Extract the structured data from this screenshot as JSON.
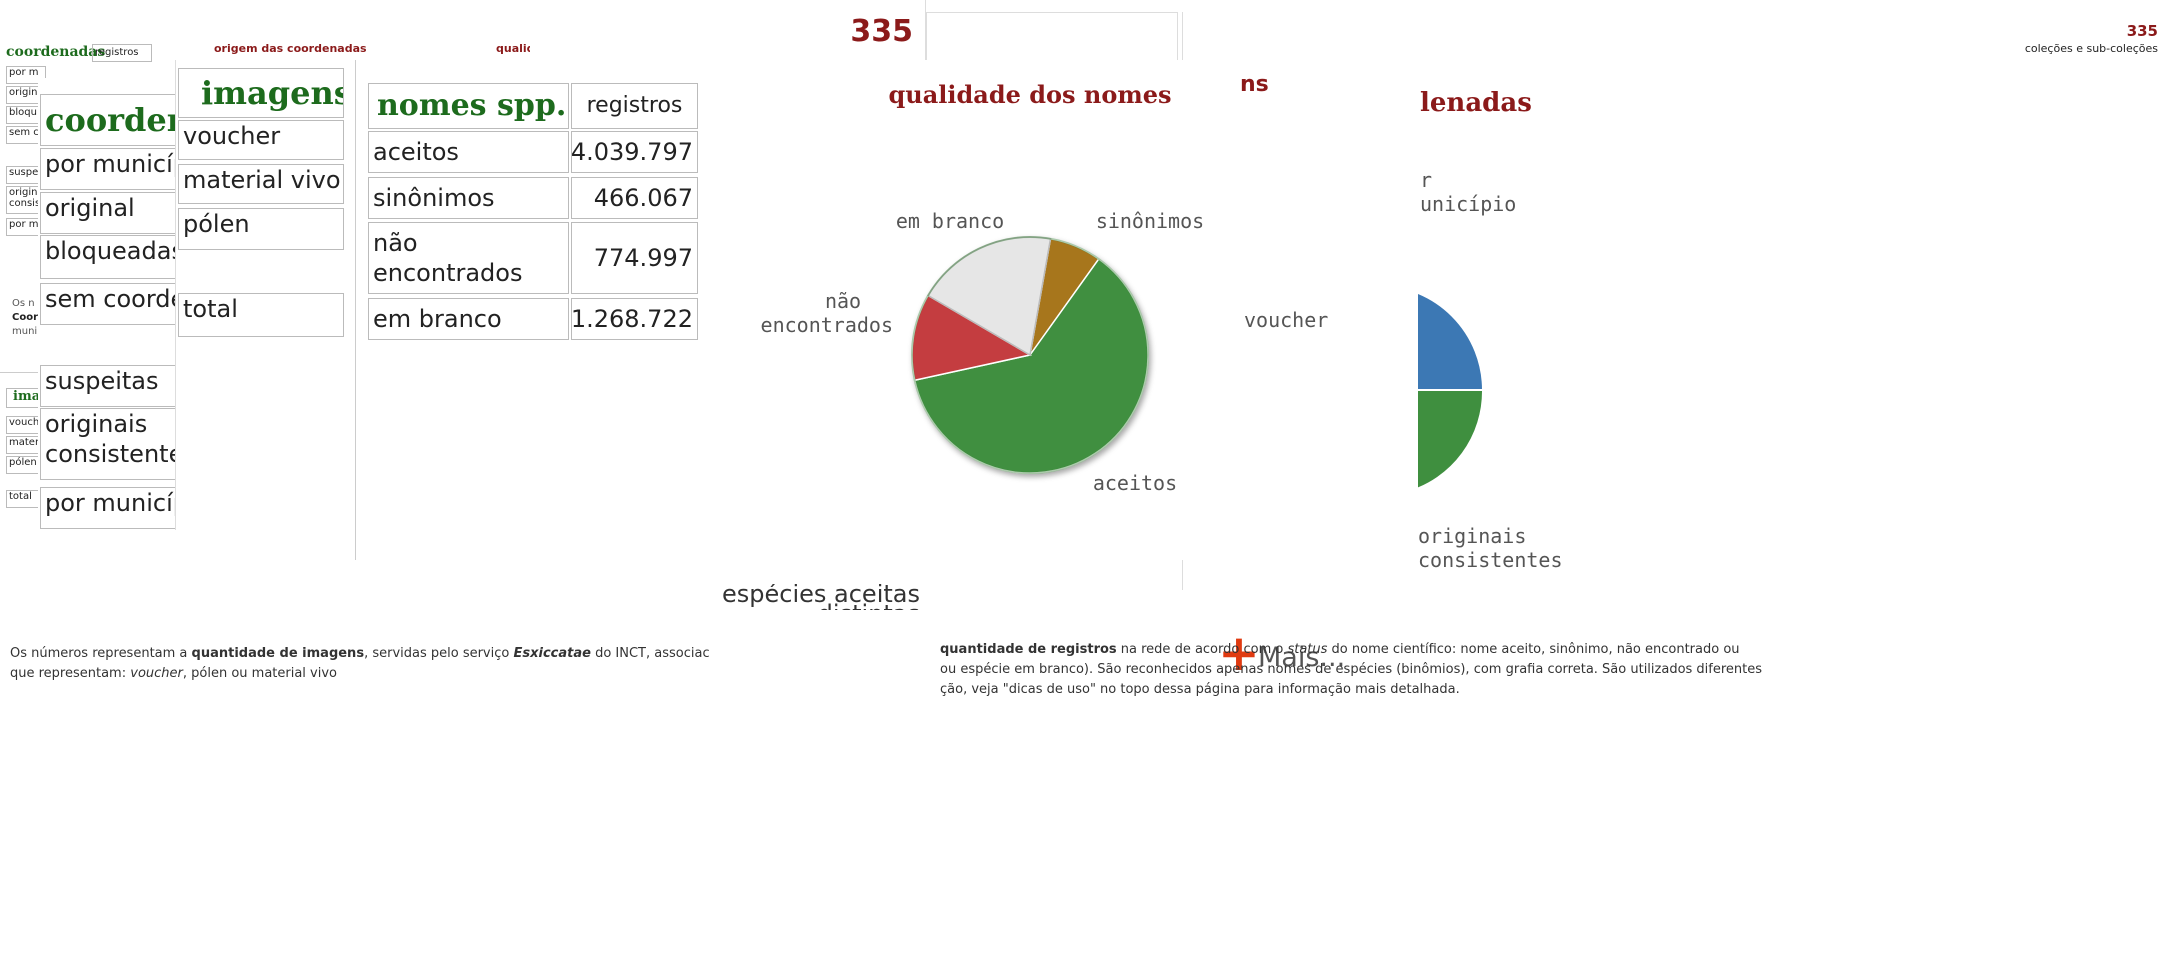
{
  "back_panel": {
    "header": "coordenadas",
    "header2": "registros",
    "col_origin": "origem das coordenadas",
    "col_quality": "qualid",
    "rows": [
      "por m",
      "origin",
      "bloqu",
      "sem c",
      "suspe",
      "origin\nconsis",
      "por m"
    ],
    "note": [
      "Os n",
      "Coor",
      "muni"
    ],
    "images_header": "ima",
    "images_rows": [
      "vouch",
      "mater",
      "pólen",
      "total"
    ]
  },
  "coord_panel": {
    "title": "coorden",
    "rows": [
      "por municíp",
      "original",
      "bloqueadas",
      "sem coorde",
      "suspeitas",
      "originais\nconsistente",
      "por municíp"
    ]
  },
  "images_panel": {
    "title": "imagens",
    "rows": [
      "voucher",
      "material vivo",
      "pólen",
      "total"
    ]
  },
  "count": "335",
  "table": {
    "headers": [
      "nomes spp.",
      "registros"
    ]
  },
  "chart_data": {
    "type": "pie",
    "title": "qualidade dos nomes",
    "categories": [
      "aceitos",
      "sinônimos",
      "não\nencontrados",
      "em branco"
    ],
    "values": [
      4039797,
      466067,
      774997,
      1268722
    ],
    "value_labels": [
      "4.039.797",
      "466.067",
      "774.997",
      "1.268.722"
    ],
    "colors": [
      "#3f8f3f",
      "#a7761f",
      "#c43d3f",
      "#e6e6e6"
    ]
  },
  "species_caption": "espécies aceitas distintas",
  "images_note": [
    [
      "Os números representam a ",
      "quantidade de imagens",
      ", servidas pelo serviço ",
      "Esxiccatae",
      " do INCT, associac"
    ],
    [
      "que representam: ",
      "voucher",
      ", pólen ou material vivo"
    ]
  ],
  "more": "Mais...",
  "names_note": [
    [
      "quantidade de registros",
      " na rede de acordo com o ",
      "status",
      " do nome científico: nome aceito, sinônimo, não encontrado ou"
    ],
    [
      "ou espécie em branco). São reconhecidos apenas nomes de espécies (binômios), com grafia correta. São utilizados diferentes"
    ],
    [
      "ção, veja \"dicas de uso\" no topo dessa página para informação mais detalhada."
    ]
  ],
  "right_panel": {
    "count": "335",
    "count_label": "coleções e sub-coleções",
    "title_a": "ns",
    "title_b": "lenadas",
    "label_voucher": "voucher",
    "label_municipio": "r\nunicípio",
    "label_consistentes": "originais\nconsistentes"
  }
}
